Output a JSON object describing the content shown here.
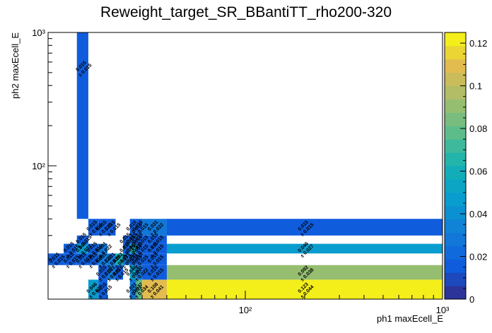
{
  "chart_data": {
    "type": "heatmap",
    "title": "Reweight_target_SR_BBantiTT_rho200-320",
    "xlabel": "ph1 maxEcell_E",
    "ylabel": "ph2 maxEcell_E",
    "x_scale": "log",
    "y_scale": "log",
    "xlim": [
      10,
      1000
    ],
    "ylim": [
      10,
      1000
    ],
    "x_ticks": [
      {
        "value": 100,
        "label": "10²"
      },
      {
        "value": 1000,
        "label": "10³"
      }
    ],
    "y_ticks": [
      {
        "value": 100,
        "label": "10²"
      },
      {
        "value": 1000,
        "label": "10³"
      }
    ],
    "x_edges": [
      10,
      12,
      14,
      16,
      18,
      20,
      22,
      24,
      26,
      28,
      30,
      40,
      1000
    ],
    "y_edges": [
      10,
      14,
      18,
      22,
      26,
      30,
      40,
      1000
    ],
    "cells": [
      {
        "xi": 2,
        "yi": 6,
        "value": 0.015,
        "label": "0.015",
        "err": "± 0.015"
      },
      {
        "xi": 0,
        "yi": 2,
        "value": 0.015,
        "label": "0.015",
        "err": "± 0.015"
      },
      {
        "xi": 1,
        "yi": 2,
        "value": 0.015,
        "label": "0.015",
        "err": "± 0.015"
      },
      {
        "xi": 2,
        "yi": 2,
        "value": 0.015,
        "label": "0.015",
        "err": "± 0.015"
      },
      {
        "xi": 3,
        "yi": 2,
        "value": 0.015,
        "label": "0.015",
        "err": "± 0.015"
      },
      {
        "xi": 4,
        "yi": 2,
        "value": 0.031,
        "label": "0.031",
        "err": "± 0.022"
      },
      {
        "xi": 5,
        "yi": 2,
        "value": 0.031,
        "label": "0.031",
        "err": "± 0.022"
      },
      {
        "xi": 6,
        "yi": 2,
        "value": 0.062,
        "label": "0.062",
        "err": "± 0.031"
      },
      {
        "xi": 7,
        "yi": 2,
        "value": 0.031,
        "label": "0.031",
        "err": "± 0.022"
      },
      {
        "xi": 8,
        "yi": 2,
        "value": 0.015,
        "label": "0.015",
        "err": "± 0.015"
      },
      {
        "xi": 9,
        "yi": 2,
        "value": 0.015,
        "label": "0.015",
        "err": "± 0.015"
      },
      {
        "xi": 10,
        "yi": 2,
        "value": 0.015,
        "label": "0.015",
        "err": "± 0.015"
      },
      {
        "xi": 3,
        "yi": 0,
        "value": 0.046,
        "label": "0.046",
        "err": "± 0.027"
      },
      {
        "xi": 4,
        "yi": 0,
        "value": 0.015,
        "label": "0.015",
        "err": "± 0.015"
      },
      {
        "xi": 8,
        "yi": 0,
        "value": 0.031,
        "label": "0.031",
        "err": "± 0.022"
      },
      {
        "xi": 9,
        "yi": 0,
        "value": 0.077,
        "label": "0.077",
        "err": "± 0.034"
      },
      {
        "xi": 10,
        "yi": 0,
        "value": 0.108,
        "label": "0.108",
        "err": "± 0.041"
      },
      {
        "xi": 11,
        "yi": 0,
        "value": 0.123,
        "label": "0.123",
        "err": "± 0.044"
      },
      {
        "xi": 4,
        "yi": 1,
        "value": 0.015,
        "label": "0.015",
        "err": "± 0.015"
      },
      {
        "xi": 5,
        "yi": 1,
        "value": 0.031,
        "label": "0.031",
        "err": "± 0.022"
      },
      {
        "xi": 6,
        "yi": 1,
        "value": 0.015,
        "label": "0.015",
        "err": "± 0.015"
      },
      {
        "xi": 8,
        "yi": 1,
        "value": 0.046,
        "label": "0.046",
        "err": "± 0.027"
      },
      {
        "xi": 9,
        "yi": 1,
        "value": 0.031,
        "label": "0.031",
        "err": "± 0.022"
      },
      {
        "xi": 10,
        "yi": 1,
        "value": 0.015,
        "label": "0.015",
        "err": "± 0.015"
      },
      {
        "xi": 11,
        "yi": 1,
        "value": 0.092,
        "label": "0.092",
        "err": "± 0.038"
      },
      {
        "xi": 1,
        "yi": 3,
        "value": 0.015,
        "label": "0.015",
        "err": "± 0.015"
      },
      {
        "xi": 2,
        "yi": 3,
        "value": 0.046,
        "label": "0.046",
        "err": "± 0.027"
      },
      {
        "xi": 3,
        "yi": 3,
        "value": 0.015,
        "label": "0.015",
        "err": "± 0.015"
      },
      {
        "xi": 4,
        "yi": 3,
        "value": 0.031,
        "label": "0.031",
        "err": "± 0.022"
      },
      {
        "xi": 7,
        "yi": 3,
        "value": 0.015,
        "label": "0.015",
        "err": "± 0.015"
      },
      {
        "xi": 8,
        "yi": 3,
        "value": 0.062,
        "label": "0.062",
        "err": "± 0.031"
      },
      {
        "xi": 9,
        "yi": 3,
        "value": 0.015,
        "label": "0.015",
        "err": "± 0.015"
      },
      {
        "xi": 10,
        "yi": 3,
        "value": 0.015,
        "label": "0.015",
        "err": "± 0.015"
      },
      {
        "xi": 11,
        "yi": 3,
        "value": 0.046,
        "label": "0.046",
        "err": "± 0.027"
      },
      {
        "xi": 2,
        "yi": 4,
        "value": 0.015,
        "label": "0.015",
        "err": "± 0.015"
      },
      {
        "xi": 7,
        "yi": 4,
        "value": 0.015,
        "label": "0.015",
        "err": "± 0.015"
      },
      {
        "xi": 8,
        "yi": 4,
        "value": 0.015,
        "label": "0.015",
        "err": "± 0.015"
      },
      {
        "xi": 9,
        "yi": 4,
        "value": 0.015,
        "label": "0.015",
        "err": "± 0.015"
      },
      {
        "xi": 10,
        "yi": 4,
        "value": 0.015,
        "label": "0.015",
        "err": "± 0.015"
      },
      {
        "xi": 3,
        "yi": 5,
        "value": 0.015,
        "label": "0.015",
        "err": "± 0.015"
      },
      {
        "xi": 4,
        "yi": 5,
        "value": 0.015,
        "label": "0.015",
        "err": "± 0.015"
      },
      {
        "xi": 5,
        "yi": 5,
        "value": 0.015,
        "label": "0.015",
        "err": "± 0.015"
      },
      {
        "xi": 8,
        "yi": 5,
        "value": 0.015,
        "label": "0.015",
        "err": "± 0.015"
      },
      {
        "xi": 9,
        "yi": 5,
        "value": 0.015,
        "label": "0.015",
        "err": "± 0.015"
      },
      {
        "xi": 10,
        "yi": 5,
        "value": 0.031,
        "label": "0.031",
        "err": "± 0.022"
      },
      {
        "xi": 11,
        "yi": 5,
        "value": 0.015,
        "label": "0.015",
        "err": "± 0.015"
      }
    ],
    "colorbar": {
      "min": 0,
      "max": 0.125,
      "ticks": [
        {
          "value": 0,
          "label": "0"
        },
        {
          "value": 0.02,
          "label": "0.02"
        },
        {
          "value": 0.04,
          "label": "0.04"
        },
        {
          "value": 0.06,
          "label": "0.06"
        },
        {
          "value": 0.08,
          "label": "0.08"
        },
        {
          "value": 0.1,
          "label": "0.1"
        },
        {
          "value": 0.12,
          "label": "0.12"
        }
      ]
    },
    "legend": "none",
    "grid": false
  }
}
